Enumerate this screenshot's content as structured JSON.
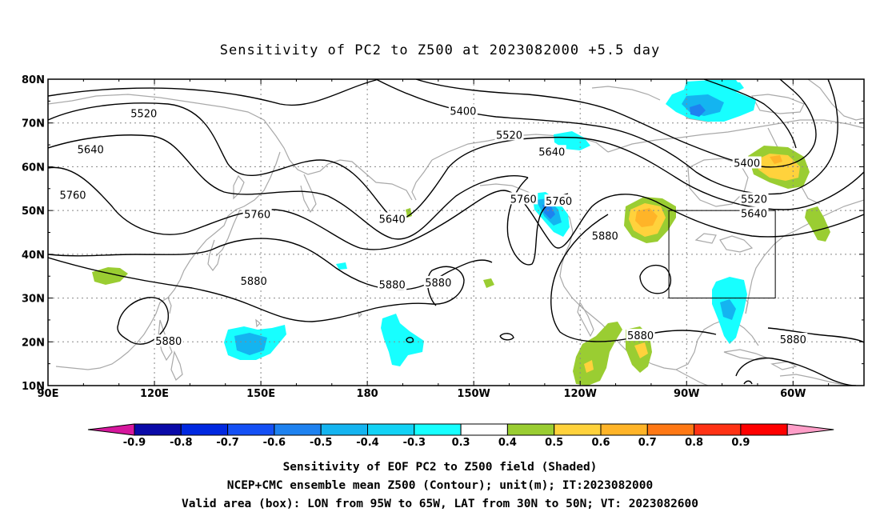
{
  "title": "Sensitivity of PC2 to Z500 at 2023082000 +5.5 day",
  "lat_labels": [
    "80N",
    "70N",
    "60N",
    "50N",
    "40N",
    "30N",
    "20N",
    "10N"
  ],
  "lon_labels": [
    "90E",
    "120E",
    "150E",
    "180",
    "150W",
    "120W",
    "90W",
    "60W"
  ],
  "contour_labels": [
    {
      "text": "5520",
      "lon": 117,
      "lat": 72.2
    },
    {
      "text": "5400",
      "lon": 207,
      "lat": 72.8
    },
    {
      "text": "5520",
      "lon": 220,
      "lat": 67.3
    },
    {
      "text": "5640",
      "lon": 102,
      "lat": 64.0
    },
    {
      "text": "5640",
      "lon": 232,
      "lat": 63.5
    },
    {
      "text": "5400",
      "lon": 287,
      "lat": 60.9
    },
    {
      "text": "5760",
      "lon": 97,
      "lat": 53.6
    },
    {
      "text": "5760",
      "lon": 224,
      "lat": 52.7
    },
    {
      "text": "5760",
      "lon": 234,
      "lat": 52.2
    },
    {
      "text": "5520",
      "lon": 289,
      "lat": 52.7
    },
    {
      "text": "5760",
      "lon": 149,
      "lat": 49.2
    },
    {
      "text": "5640",
      "lon": 289,
      "lat": 49.4
    },
    {
      "text": "5640",
      "lon": 187,
      "lat": 48.1
    },
    {
      "text": "5880",
      "lon": 247,
      "lat": 44.3
    },
    {
      "text": "5880",
      "lon": 148,
      "lat": 33.9
    },
    {
      "text": "5880",
      "lon": 187,
      "lat": 33.1
    },
    {
      "text": "5880",
      "lon": 200,
      "lat": 33.6
    },
    {
      "text": "5880",
      "lon": 124,
      "lat": 20.2
    },
    {
      "text": "5880",
      "lon": 257,
      "lat": 21.5
    },
    {
      "text": "5880",
      "lon": 300,
      "lat": 20.6
    }
  ],
  "colorbar": {
    "labels": [
      "-0.9",
      "-0.8",
      "-0.7",
      "-0.6",
      "-0.5",
      "-0.4",
      "-0.3",
      "0.3",
      "0.4",
      "0.5",
      "0.6",
      "0.7",
      "0.8",
      "0.9"
    ],
    "colors": [
      "#d6179d",
      "#0a0aa8",
      "#0028e0",
      "#1450f5",
      "#1e82f0",
      "#14b4f0",
      "#12d2f5",
      "#17ffff",
      "#ffffff",
      "#9acd32",
      "#ffd23c",
      "#ffb428",
      "#ff7814",
      "#ff3214",
      "#ff0000",
      "#ff9ec8"
    ]
  },
  "footer": {
    "line1": "Sensitivity of EOF PC2 to Z500 field (Shaded)",
    "line2": "NCEP+CMC ensemble mean Z500 (Contour); unit(m); IT:2023082000",
    "line3": "Valid area (box): LON from 95W to 65W, LAT from 30N to 50N; VT: 2023082600"
  },
  "valid_box": {
    "lon_min": -95,
    "lon_max": -65,
    "lat_min": 30,
    "lat_max": 50
  }
}
